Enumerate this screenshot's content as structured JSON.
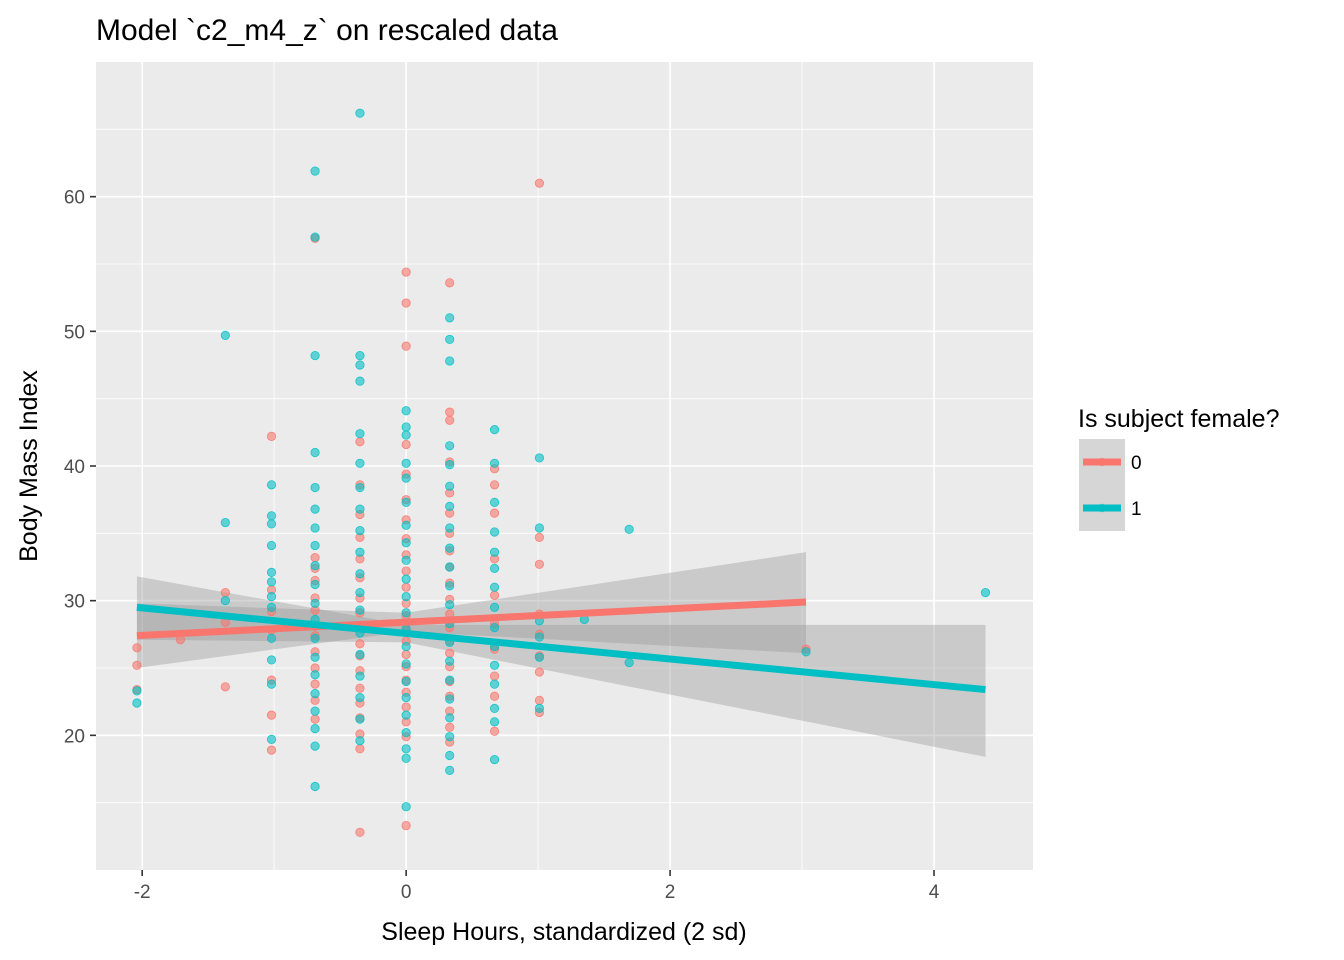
{
  "chart_data": {
    "type": "scatter",
    "title": "Model `c2_m4_z` on rescaled data",
    "xlabel": "Sleep Hours, standardized (2 sd)",
    "ylabel": "Body Mass Index",
    "xlim": [
      -2.35,
      4.75
    ],
    "ylim": [
      10,
      70
    ],
    "x_ticks": [
      -2,
      0,
      2,
      4
    ],
    "x_tick_labels": [
      "-2",
      "0",
      "2",
      "4"
    ],
    "y_ticks": [
      20,
      30,
      40,
      50,
      60
    ],
    "y_tick_labels": [
      "20",
      "30",
      "40",
      "50",
      "60"
    ],
    "grid": true,
    "legend": {
      "title": "Is subject female?",
      "position": "right",
      "entries": [
        {
          "label": "0",
          "color": "#F8766D"
        },
        {
          "label": "1",
          "color": "#00BFC4"
        }
      ]
    },
    "colors": {
      "panel": "#EBEBEB",
      "grid": "#FFFFFF",
      "ribbon": "#999999",
      "group0": "#F8766D",
      "group1": "#00BFC4"
    },
    "series": [
      {
        "group": "0",
        "color": "#F8766D",
        "points": [
          [
            -2.04,
            26.5
          ],
          [
            -2.04,
            25.2
          ],
          [
            -2.04,
            23.4
          ],
          [
            -1.71,
            27.1
          ],
          [
            -1.37,
            30.6
          ],
          [
            -1.37,
            23.6
          ],
          [
            -1.37,
            28.4
          ],
          [
            -1.02,
            42.2
          ],
          [
            -1.02,
            29.2
          ],
          [
            -1.02,
            27.8
          ],
          [
            -1.02,
            24.1
          ],
          [
            -1.02,
            21.5
          ],
          [
            -1.02,
            18.9
          ],
          [
            -1.02,
            30.8
          ],
          [
            -0.69,
            56.9
          ],
          [
            -0.69,
            33.2
          ],
          [
            -0.69,
            31.5
          ],
          [
            -0.69,
            30.2
          ],
          [
            -0.69,
            29.3
          ],
          [
            -0.69,
            27.4
          ],
          [
            -0.69,
            26.2
          ],
          [
            -0.69,
            25.0
          ],
          [
            -0.69,
            23.8
          ],
          [
            -0.69,
            22.6
          ],
          [
            -0.69,
            21.2
          ],
          [
            -0.69,
            28.1
          ],
          [
            -0.69,
            32.4
          ],
          [
            -0.35,
            41.8
          ],
          [
            -0.35,
            38.6
          ],
          [
            -0.35,
            36.4
          ],
          [
            -0.35,
            34.7
          ],
          [
            -0.35,
            33.1
          ],
          [
            -0.35,
            31.7
          ],
          [
            -0.35,
            30.2
          ],
          [
            -0.35,
            29.1
          ],
          [
            -0.35,
            28.0
          ],
          [
            -0.35,
            26.8
          ],
          [
            -0.35,
            25.9
          ],
          [
            -0.35,
            24.8
          ],
          [
            -0.35,
            23.5
          ],
          [
            -0.35,
            22.4
          ],
          [
            -0.35,
            21.3
          ],
          [
            -0.35,
            20.1
          ],
          [
            -0.35,
            19.0
          ],
          [
            -0.35,
            12.8
          ],
          [
            0.0,
            54.4
          ],
          [
            0.0,
            52.1
          ],
          [
            0.0,
            48.9
          ],
          [
            0.0,
            41.6
          ],
          [
            0.0,
            39.4
          ],
          [
            0.0,
            37.5
          ],
          [
            0.0,
            36.0
          ],
          [
            0.0,
            34.6
          ],
          [
            0.0,
            33.4
          ],
          [
            0.0,
            32.2
          ],
          [
            0.0,
            31.0
          ],
          [
            0.0,
            29.8
          ],
          [
            0.0,
            28.9
          ],
          [
            0.0,
            27.9
          ],
          [
            0.0,
            27.0
          ],
          [
            0.0,
            26.0
          ],
          [
            0.0,
            25.1
          ],
          [
            0.0,
            24.1
          ],
          [
            0.0,
            23.2
          ],
          [
            0.0,
            22.1
          ],
          [
            0.0,
            21.0
          ],
          [
            0.0,
            19.9
          ],
          [
            0.0,
            13.3
          ],
          [
            0.33,
            53.6
          ],
          [
            0.33,
            44.0
          ],
          [
            0.33,
            43.4
          ],
          [
            0.33,
            40.3
          ],
          [
            0.33,
            38.0
          ],
          [
            0.33,
            36.5
          ],
          [
            0.33,
            35.0
          ],
          [
            0.33,
            33.7
          ],
          [
            0.33,
            32.5
          ],
          [
            0.33,
            31.3
          ],
          [
            0.33,
            30.1
          ],
          [
            0.33,
            29.0
          ],
          [
            0.33,
            28.0
          ],
          [
            0.33,
            27.0
          ],
          [
            0.33,
            26.1
          ],
          [
            0.33,
            25.1
          ],
          [
            0.33,
            24.0
          ],
          [
            0.33,
            22.9
          ],
          [
            0.33,
            21.8
          ],
          [
            0.33,
            20.6
          ],
          [
            0.33,
            19.5
          ],
          [
            0.67,
            39.8
          ],
          [
            0.67,
            38.6
          ],
          [
            0.67,
            36.5
          ],
          [
            0.67,
            33.1
          ],
          [
            0.67,
            30.4
          ],
          [
            0.67,
            28.3
          ],
          [
            0.67,
            26.4
          ],
          [
            0.67,
            24.4
          ],
          [
            0.67,
            22.9
          ],
          [
            0.67,
            20.3
          ],
          [
            1.01,
            61.0
          ],
          [
            1.01,
            34.7
          ],
          [
            1.01,
            32.7
          ],
          [
            1.01,
            29.0
          ],
          [
            1.01,
            27.5
          ],
          [
            1.01,
            25.9
          ],
          [
            1.01,
            24.7
          ],
          [
            1.01,
            22.6
          ],
          [
            1.01,
            21.7
          ],
          [
            3.03,
            26.4
          ]
        ],
        "fit": {
          "x": [
            -2.04,
            3.03
          ],
          "y": [
            27.4,
            29.9
          ]
        },
        "ci": {
          "x": [
            -2.04,
            0.0,
            3.03
          ],
          "lower": [
            25.0,
            27.7,
            26.1
          ],
          "upper": [
            29.8,
            29.1,
            33.6
          ]
        }
      },
      {
        "group": "1",
        "color": "#00BFC4",
        "points": [
          [
            -2.04,
            22.4
          ],
          [
            -2.04,
            23.3
          ],
          [
            -1.37,
            49.7
          ],
          [
            -1.37,
            35.8
          ],
          [
            -1.37,
            30.0
          ],
          [
            -1.02,
            38.6
          ],
          [
            -1.02,
            36.3
          ],
          [
            -1.02,
            35.7
          ],
          [
            -1.02,
            34.1
          ],
          [
            -1.02,
            32.1
          ],
          [
            -1.02,
            31.4
          ],
          [
            -1.02,
            30.3
          ],
          [
            -1.02,
            29.5
          ],
          [
            -1.02,
            27.2
          ],
          [
            -1.02,
            25.6
          ],
          [
            -1.02,
            23.8
          ],
          [
            -1.02,
            19.7
          ],
          [
            -0.69,
            61.9
          ],
          [
            -0.69,
            57.0
          ],
          [
            -0.69,
            48.2
          ],
          [
            -0.69,
            41.0
          ],
          [
            -0.69,
            38.4
          ],
          [
            -0.69,
            36.8
          ],
          [
            -0.69,
            35.4
          ],
          [
            -0.69,
            34.1
          ],
          [
            -0.69,
            32.6
          ],
          [
            -0.69,
            31.2
          ],
          [
            -0.69,
            29.8
          ],
          [
            -0.69,
            28.6
          ],
          [
            -0.69,
            27.2
          ],
          [
            -0.69,
            25.8
          ],
          [
            -0.69,
            24.5
          ],
          [
            -0.69,
            23.1
          ],
          [
            -0.69,
            21.8
          ],
          [
            -0.69,
            20.5
          ],
          [
            -0.69,
            19.2
          ],
          [
            -0.69,
            16.2
          ],
          [
            -0.35,
            66.2
          ],
          [
            -0.35,
            48.2
          ],
          [
            -0.35,
            47.5
          ],
          [
            -0.35,
            46.3
          ],
          [
            -0.35,
            42.4
          ],
          [
            -0.35,
            40.2
          ],
          [
            -0.35,
            38.4
          ],
          [
            -0.35,
            36.8
          ],
          [
            -0.35,
            35.2
          ],
          [
            -0.35,
            33.6
          ],
          [
            -0.35,
            32.0
          ],
          [
            -0.35,
            30.6
          ],
          [
            -0.35,
            29.3
          ],
          [
            -0.35,
            27.6
          ],
          [
            -0.35,
            26.0
          ],
          [
            -0.35,
            24.4
          ],
          [
            -0.35,
            22.8
          ],
          [
            -0.35,
            21.2
          ],
          [
            -0.35,
            19.6
          ],
          [
            0.0,
            44.1
          ],
          [
            0.0,
            42.9
          ],
          [
            0.0,
            42.3
          ],
          [
            0.0,
            40.2
          ],
          [
            0.0,
            39.1
          ],
          [
            0.0,
            37.3
          ],
          [
            0.0,
            35.6
          ],
          [
            0.0,
            34.3
          ],
          [
            0.0,
            33.0
          ],
          [
            0.0,
            31.6
          ],
          [
            0.0,
            30.3
          ],
          [
            0.0,
            29.1
          ],
          [
            0.0,
            27.9
          ],
          [
            0.0,
            26.6
          ],
          [
            0.0,
            25.3
          ],
          [
            0.0,
            24.0
          ],
          [
            0.0,
            22.8
          ],
          [
            0.0,
            21.5
          ],
          [
            0.0,
            20.2
          ],
          [
            0.0,
            19.0
          ],
          [
            0.0,
            18.3
          ],
          [
            0.0,
            14.7
          ],
          [
            0.33,
            51.0
          ],
          [
            0.33,
            49.4
          ],
          [
            0.33,
            47.8
          ],
          [
            0.33,
            41.5
          ],
          [
            0.33,
            40.1
          ],
          [
            0.33,
            38.5
          ],
          [
            0.33,
            37.0
          ],
          [
            0.33,
            35.4
          ],
          [
            0.33,
            33.9
          ],
          [
            0.33,
            32.5
          ],
          [
            0.33,
            31.1
          ],
          [
            0.33,
            29.7
          ],
          [
            0.33,
            28.3
          ],
          [
            0.33,
            26.9
          ],
          [
            0.33,
            25.5
          ],
          [
            0.33,
            24.1
          ],
          [
            0.33,
            22.7
          ],
          [
            0.33,
            21.3
          ],
          [
            0.33,
            19.9
          ],
          [
            0.33,
            18.5
          ],
          [
            0.33,
            17.4
          ],
          [
            0.67,
            42.7
          ],
          [
            0.67,
            40.2
          ],
          [
            0.67,
            37.3
          ],
          [
            0.67,
            35.1
          ],
          [
            0.67,
            33.6
          ],
          [
            0.67,
            32.4
          ],
          [
            0.67,
            31.0
          ],
          [
            0.67,
            29.5
          ],
          [
            0.67,
            28.0
          ],
          [
            0.67,
            26.6
          ],
          [
            0.67,
            25.2
          ],
          [
            0.67,
            23.8
          ],
          [
            0.67,
            22.0
          ],
          [
            0.67,
            21.0
          ],
          [
            0.67,
            18.2
          ],
          [
            1.01,
            40.6
          ],
          [
            1.01,
            35.4
          ],
          [
            1.01,
            28.5
          ],
          [
            1.01,
            27.3
          ],
          [
            1.01,
            25.8
          ],
          [
            1.01,
            22.0
          ],
          [
            1.35,
            28.6
          ],
          [
            1.69,
            35.3
          ],
          [
            1.69,
            25.4
          ],
          [
            3.03,
            26.2
          ],
          [
            4.39,
            30.6
          ]
        ],
        "fit": {
          "x": [
            -2.04,
            4.39
          ],
          "y": [
            29.5,
            23.4
          ]
        },
        "ci": {
          "x": [
            -2.04,
            0.0,
            4.39
          ],
          "lower": [
            27.1,
            26.9,
            18.4
          ],
          "upper": [
            31.8,
            28.2,
            28.2
          ]
        }
      }
    ]
  }
}
